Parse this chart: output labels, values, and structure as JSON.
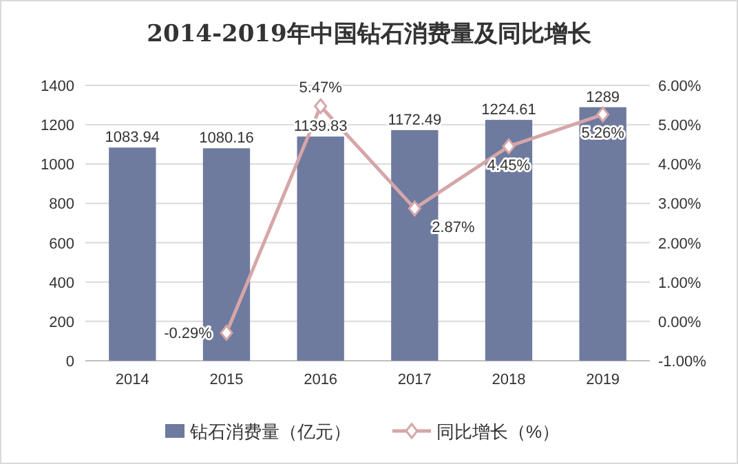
{
  "chart_data": {
    "type": "bar",
    "title": "2014-2019年中国钻石消费量及同比增长",
    "categories": [
      "2014",
      "2015",
      "2016",
      "2017",
      "2018",
      "2019"
    ],
    "series": [
      {
        "name": "钻石消费量（亿元）",
        "color": "#6f7a9f",
        "values": [
          1083.94,
          1080.16,
          1139.83,
          1172.49,
          1224.61,
          1289
        ],
        "value_labels": [
          "1083.94",
          "1080.16",
          "1139.83",
          "1172.49",
          "1224.61",
          "1289"
        ]
      },
      {
        "name": "同比增长（%）",
        "type": "line",
        "axis": "y2",
        "color": "#d5a6a8",
        "values": [
          null,
          -0.29,
          5.47,
          2.87,
          4.45,
          5.26
        ],
        "value_labels": [
          null,
          "-0.29%",
          "5.47%",
          "2.87%",
          "4.45%",
          "5.26%"
        ]
      }
    ],
    "ylim": [
      0,
      1400
    ],
    "yticks": [
      0,
      200,
      400,
      600,
      800,
      1000,
      1200,
      1400
    ],
    "y2lim": [
      -1,
      6
    ],
    "y2ticks": [
      {
        "value": -1,
        "label": "-1.00%"
      },
      {
        "value": 0,
        "label": "0.00%"
      },
      {
        "value": 1,
        "label": "1.00%"
      },
      {
        "value": 2,
        "label": "2.00%"
      },
      {
        "value": 3,
        "label": "3.00%"
      },
      {
        "value": 4,
        "label": "4.00%"
      },
      {
        "value": 5,
        "label": "5.00%"
      },
      {
        "value": 6,
        "label": "6.00%"
      }
    ],
    "grid": "y",
    "legend": "bottom",
    "marker": "diamond",
    "line_style": "solid"
  }
}
